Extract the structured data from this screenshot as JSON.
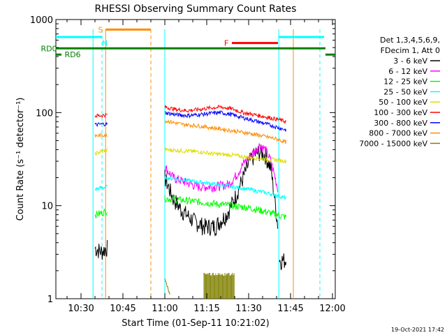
{
  "chart_data": {
    "type": "line",
    "title": "RHESSI Observing Summary Count Rates",
    "xlabel": "Start Time (01-Sep-11 10:21:02)",
    "ylabel": "Count Rate (s⁻¹ detector⁻¹)",
    "yscale": "log",
    "ylim": [
      1,
      1000
    ],
    "xlim_minutes_after_1000": [
      21,
      121
    ],
    "x_ticks": [
      {
        "label": "10:30",
        "minutes": 30
      },
      {
        "label": "10:45",
        "minutes": 45
      },
      {
        "label": "11:00",
        "minutes": 60
      },
      {
        "label": "11:15",
        "minutes": 75
      },
      {
        "label": "11:30",
        "minutes": 90
      },
      {
        "label": "11:45",
        "minutes": 105
      },
      {
        "label": "12:00",
        "minutes": 120
      }
    ],
    "y_ticks": [
      {
        "label": "1",
        "value": 1
      },
      {
        "label": "10",
        "value": 10
      },
      {
        "label": "100",
        "value": 100
      },
      {
        "label": "1000",
        "value": 1000
      }
    ],
    "legend_header": [
      "Det 1,3,4,5,6,9,",
      "FDecim 1, Att 0"
    ],
    "legend_placement": "right",
    "series": [
      {
        "name": "3 - 6 keV",
        "color": "#000000",
        "segments": [
          {
            "x": [
              35,
              37.5,
              39.5
            ],
            "y": [
              3.5,
              3.2,
              3.6
            ]
          },
          {
            "x": [
              60,
              63,
              66,
              70,
              74,
              78,
              82,
              85,
              88,
              90,
              92,
              94,
              96,
              98,
              100.5
            ],
            "y": [
              20,
              12,
              9,
              7,
              6,
              6,
              8,
              12,
              20,
              28,
              35,
              38,
              35,
              25,
              6
            ]
          },
          {
            "x": [
              101,
              103.5
            ],
            "y": [
              2.6,
              2.6
            ]
          }
        ]
      },
      {
        "name": "6 - 12 keV",
        "color": "#ff00ff",
        "segments": [
          {
            "x": [
              60,
              63,
              67,
              72,
              78,
              83,
              86,
              88,
              90,
              92,
              94,
              96,
              98,
              100.5
            ],
            "y": [
              26,
              20,
              18,
              16,
              16,
              17,
              22,
              28,
              33,
              38,
              45,
              40,
              30,
              15
            ]
          }
        ]
      },
      {
        "name": "12 - 25 keV",
        "color": "#00ff00",
        "segments": [
          {
            "x": [
              35,
              37,
              39.5
            ],
            "y": [
              8,
              8.3,
              8.8
            ]
          },
          {
            "x": [
              60,
              66,
              72,
              78,
              84,
              90,
              95,
              100,
              103.5
            ],
            "y": [
              12,
              11.5,
              11,
              10.5,
              10,
              9.5,
              8.8,
              8,
              7.5
            ]
          }
        ]
      },
      {
        "name": "25 - 50 keV",
        "color": "#00ffff",
        "segments": [
          {
            "x": [
              35,
              37,
              39.5
            ],
            "y": [
              15,
              15.5,
              16
            ]
          },
          {
            "x": [
              60,
              66,
              72,
              78,
              84,
              90,
              95,
              100,
              103.5
            ],
            "y": [
              20,
              19,
              18,
              17,
              16,
              15,
              14,
              13,
              12
            ]
          }
        ]
      },
      {
        "name": "50 - 100 keV",
        "color": "#dddd00",
        "segments": [
          {
            "x": [
              35,
              37,
              39.5
            ],
            "y": [
              36,
              38,
              40
            ]
          },
          {
            "x": [
              60,
              66,
              72,
              78,
              84,
              90,
              95,
              100,
              103.5
            ],
            "y": [
              40,
              39,
              38,
              36,
              35,
              33,
              32,
              31,
              30
            ]
          }
        ]
      },
      {
        "name": "100 - 300 keV",
        "color": "#ff0000",
        "segments": [
          {
            "x": [
              35,
              37,
              39.5
            ],
            "y": [
              92,
              93,
              95
            ]
          },
          {
            "x": [
              60,
              64,
              68,
              72,
              76,
              80,
              84,
              88,
              92,
              96,
              100,
              103.5
            ],
            "y": [
              115,
              108,
              105,
              108,
              112,
              115,
              110,
              100,
              95,
              90,
              85,
              80
            ]
          }
        ]
      },
      {
        "name": "300 - 800 keV",
        "color": "#0000ff",
        "segments": [
          {
            "x": [
              35,
              37,
              39.5
            ],
            "y": [
              74,
              75,
              76
            ]
          },
          {
            "x": [
              60,
              64,
              68,
              72,
              76,
              80,
              84,
              88,
              92,
              96,
              100,
              103.5
            ],
            "y": [
              100,
              95,
              93,
              95,
              98,
              100,
              95,
              88,
              82,
              76,
              70,
              65
            ]
          }
        ]
      },
      {
        "name": "800 - 7000 keV",
        "color": "#ff8c00",
        "segments": [
          {
            "x": [
              35,
              37,
              39.5
            ],
            "y": [
              56,
              57,
              58
            ]
          },
          {
            "x": [
              60,
              66,
              72,
              78,
              84,
              90,
              95,
              100,
              103.5
            ],
            "y": [
              82,
              75,
              72,
              68,
              64,
              60,
              56,
              52,
              48
            ]
          }
        ]
      },
      {
        "name": "7000 - 15000 keV",
        "color": "#808000",
        "segments": [
          {
            "x": [
              60,
              61,
              62
            ],
            "y": [
              1.6,
              1.3,
              1.1
            ]
          },
          {
            "x": [
              74,
              78,
              82,
              85
            ],
            "y": [
              1.9,
              1.9,
              1.9,
              1.9
            ]
          }
        ]
      }
    ],
    "vertical_lines": [
      {
        "x": 34.3,
        "color": "#00ffff",
        "style": "solid"
      },
      {
        "x": 37.5,
        "color": "#00ffff",
        "style": "dashed"
      },
      {
        "x": 60,
        "color": "#00ffff",
        "style": "solid"
      },
      {
        "x": 100.8,
        "color": "#00ffff",
        "style": "solid"
      },
      {
        "x": 115.5,
        "color": "#00ffff",
        "style": "dashed"
      },
      {
        "x": 38.8,
        "color": "#ff8c00",
        "style": "solid"
      },
      {
        "x": 55,
        "color": "#ff8c00",
        "style": "dashed"
      },
      {
        "x": 106,
        "color": "#ff8c00",
        "style": "solid"
      }
    ],
    "state_bars": [
      {
        "label": "S",
        "color": "#ff8c00",
        "x": [
          38.8,
          55
        ],
        "level": 780,
        "label_x": 37
      },
      {
        "label": "N",
        "color": "#00ffff",
        "x": [
          21,
          37.5
        ],
        "level": 650,
        "label_x": 38.5,
        "label_below": true
      },
      {
        "label": "",
        "color": "#00ffff",
        "x": [
          100.8,
          117
        ],
        "level": 650
      },
      {
        "label": "F",
        "color": "#ff0000",
        "x": [
          84,
          100.5
        ],
        "level": 560,
        "label_x": 82
      },
      {
        "label": "RD0",
        "color": "#008000",
        "x": [
          21,
          117.5
        ],
        "level": 490,
        "label_x": 18.5
      },
      {
        "label": "RD6",
        "color": "#008000",
        "x": [
          21,
          23
        ],
        "level": 420,
        "label_x": 27
      },
      {
        "label": "",
        "color": "#008000",
        "x": [
          117.5,
          121
        ],
        "level": 420
      }
    ]
  },
  "footer_timestamp": "19-Oct-2021 17:42"
}
